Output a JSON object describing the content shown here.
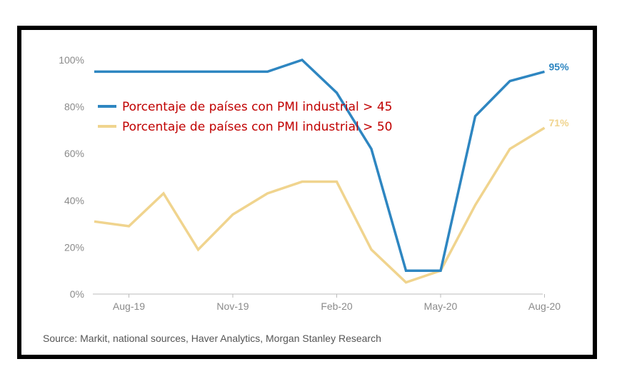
{
  "chart_data": {
    "type": "line",
    "x": [
      "Jul-19",
      "Aug-19",
      "Sep-19",
      "Oct-19",
      "Nov-19",
      "Dec-19",
      "Jan-20",
      "Feb-20",
      "Mar-20",
      "Apr-20",
      "May-20",
      "Jun-20",
      "Jul-20",
      "Aug-20"
    ],
    "x_tick_labels": [
      "Aug-19",
      "Nov-19",
      "Feb-20",
      "May-20",
      "Aug-20"
    ],
    "y_tick_labels": [
      "0%",
      "20%",
      "40%",
      "60%",
      "80%",
      "100%"
    ],
    "ylim": [
      0,
      100
    ],
    "series": [
      {
        "name": "Porcentaje de países con PMI industrial > 45",
        "color": "#2e86c1",
        "values": [
          95,
          95,
          95,
          95,
          95,
          95,
          100,
          86,
          62,
          10,
          10,
          76,
          91,
          95
        ],
        "end_label": "95%"
      },
      {
        "name": "Porcentaje de países con PMI industrial > 50",
        "color": "#f0d48e",
        "values": [
          31,
          29,
          43,
          19,
          34,
          43,
          48,
          48,
          19,
          5,
          10,
          38,
          62,
          71
        ],
        "end_label": "71%"
      }
    ],
    "grid": false,
    "legend_position": "top-left"
  },
  "footer": {
    "source": "Source: Markit, national sources, Haver Analytics, Morgan Stanley Research"
  }
}
